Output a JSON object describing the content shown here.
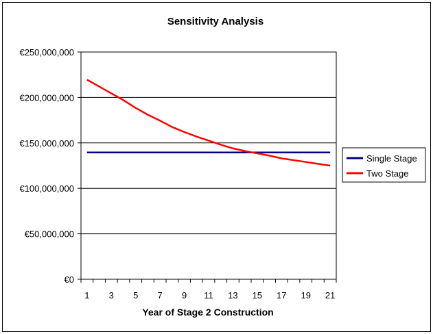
{
  "chart_data": {
    "type": "line",
    "title": "Sensitivity Analysis",
    "xlabel": "Year of Stage 2 Construction",
    "ylabel": "",
    "x": [
      1,
      2,
      3,
      4,
      5,
      6,
      7,
      8,
      9,
      10,
      11,
      12,
      13,
      14,
      15,
      16,
      17,
      18,
      19,
      20,
      21
    ],
    "x_tick_labels": [
      "1",
      "3",
      "5",
      "7",
      "9",
      "11",
      "13",
      "15",
      "17",
      "19",
      "21"
    ],
    "y_tick_labels": [
      "€0",
      "€50,000,000",
      "€100,000,000",
      "€150,000,000",
      "€200,000,000",
      "€250,000,000"
    ],
    "ylim": [
      0,
      250000000
    ],
    "grid": "horizontal",
    "legend_position": "right",
    "series": [
      {
        "name": "Single Stage",
        "color": "#000080",
        "values": [
          139500000,
          139500000,
          139500000,
          139500000,
          139500000,
          139500000,
          139500000,
          139500000,
          139500000,
          139500000,
          139500000,
          139500000,
          139500000,
          139500000,
          139500000,
          139500000,
          139500000,
          139500000,
          139500000,
          139500000,
          139500000
        ]
      },
      {
        "name": "Two Stage",
        "color": "#ff0000",
        "values": [
          219500000,
          212000000,
          204500000,
          197000000,
          188500000,
          181000000,
          174500000,
          167500000,
          162000000,
          157000000,
          152500000,
          148000000,
          144000000,
          141000000,
          138500000,
          136000000,
          133000000,
          131000000,
          129000000,
          127000000,
          125000000
        ]
      }
    ]
  }
}
